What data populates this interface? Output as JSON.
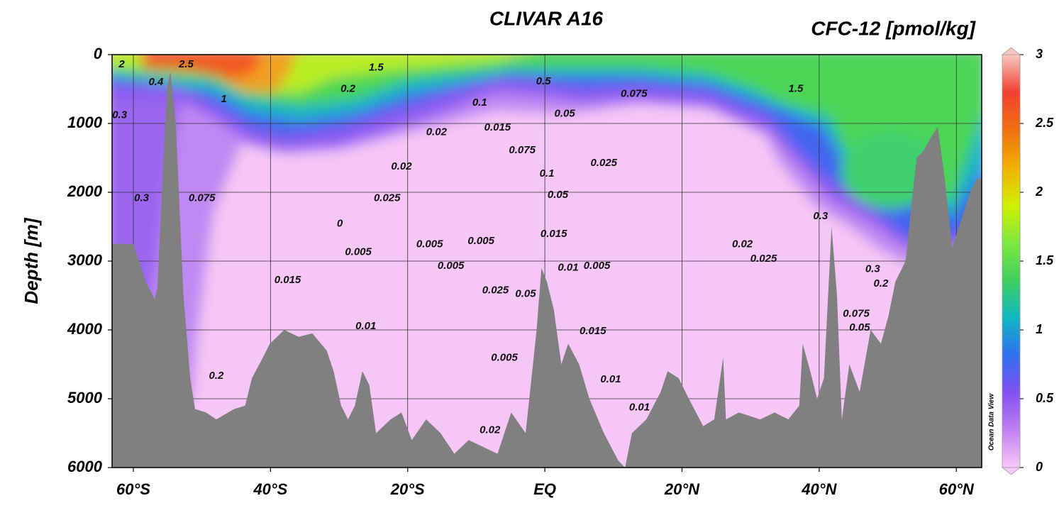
{
  "chart_data": {
    "type": "section",
    "title": "CLIVAR A16",
    "variable": "CFC-12 [pmol/kg]",
    "ylabel": "Depth [m]",
    "watermark": "Ocean Data View",
    "xlim": [
      -63.1,
      63.7
    ],
    "ylim": [
      0,
      6000
    ],
    "xticks": [
      {
        "value": -60,
        "label": "60°S"
      },
      {
        "value": -40,
        "label": "40°S"
      },
      {
        "value": -20,
        "label": "20°S"
      },
      {
        "value": 0,
        "label": "EQ"
      },
      {
        "value": 20,
        "label": "20°N"
      },
      {
        "value": 40,
        "label": "40°N"
      },
      {
        "value": 60,
        "label": "60°N"
      }
    ],
    "yticks": [
      0,
      1000,
      2000,
      3000,
      4000,
      5000,
      6000
    ],
    "grid": true,
    "bathymetry_color": "#808080",
    "colorbar": {
      "lim": [
        0,
        3
      ],
      "ticks": [
        0,
        0.5,
        1,
        1.5,
        2,
        2.5,
        3
      ],
      "colors": [
        "#f8c8f8",
        "#c080f0",
        "#8050f0",
        "#3070f0",
        "#10b8c0",
        "#40d060",
        "#80e840",
        "#d0f000",
        "#f0b000",
        "#f07010",
        "#f04030",
        "#f8c8c0"
      ]
    },
    "bathymetry": {
      "lat": [
        -63.1,
        -60,
        -58.2,
        -56.9,
        -56.5,
        -55.6,
        -55.1,
        -54.6,
        -53.8,
        -52.7,
        -51.7,
        -51,
        -49.4,
        -47.9,
        -45.3,
        -43.7,
        -42.7,
        -41.1,
        -40.1,
        -38,
        -35.9,
        -33.9,
        -31.8,
        -30.8,
        -29.7,
        -28.7,
        -27.7,
        -26.6,
        -25.6,
        -24.6,
        -22.5,
        -20.9,
        -19.4,
        -17.3,
        -15.2,
        -13.2,
        -11.1,
        -9,
        -6.9,
        -4.9,
        -2.8,
        -1.2,
        -0.5,
        0.3,
        1.3,
        2.4,
        3.4,
        5,
        6.5,
        8.6,
        10.7,
        11.7,
        12.7,
        14.8,
        16.9,
        17.9,
        19.5,
        21,
        23.1,
        24.7,
        26,
        26.4,
        28.3,
        31.4,
        33.5,
        35.5,
        37.1,
        37.6,
        38.7,
        39.7,
        40.7,
        41.8,
        42.6,
        43.3,
        44.4,
        45.9,
        47.5,
        49,
        50.1,
        51.1,
        52.6,
        54.2,
        55.2,
        56.3,
        57.3,
        58.3,
        59.4,
        60.4,
        62,
        63,
        63.7
      ],
      "depth": [
        2750,
        2750,
        3300,
        3550,
        3400,
        1500,
        500,
        250,
        1000,
        3500,
        4700,
        5150,
        5200,
        5300,
        5150,
        5100,
        4700,
        4400,
        4200,
        4000,
        4100,
        4050,
        4300,
        4600,
        5100,
        5300,
        5100,
        4600,
        4800,
        5500,
        5300,
        5200,
        5600,
        5300,
        5500,
        5800,
        5600,
        5700,
        5800,
        5200,
        5500,
        4000,
        3100,
        3300,
        3700,
        4500,
        4200,
        4500,
        5000,
        5500,
        5900,
        6000,
        5500,
        5300,
        4900,
        4600,
        4700,
        5000,
        5400,
        5300,
        4400,
        5300,
        5200,
        5300,
        5200,
        5300,
        5100,
        4200,
        4600,
        5000,
        4700,
        2500,
        3500,
        5300,
        4500,
        4900,
        4000,
        4200,
        3800,
        3300,
        3000,
        1500,
        1400,
        1200,
        1050,
        1800,
        2800,
        2500,
        2000,
        1800,
        1800
      ]
    },
    "contour_labels": [
      {
        "lat": -61.7,
        "depth": 145,
        "value": 2
      },
      {
        "lat": -52.3,
        "depth": 145,
        "value": 2.5
      },
      {
        "lat": -24.6,
        "depth": 190,
        "value": 1.5
      },
      {
        "lat": -56.7,
        "depth": 400,
        "value": 0.4
      },
      {
        "lat": -46.8,
        "depth": 650,
        "value": 1
      },
      {
        "lat": -62,
        "depth": 880,
        "value": 0.3
      },
      {
        "lat": -28.7,
        "depth": 500,
        "value": 0.2
      },
      {
        "lat": -0.2,
        "depth": 390,
        "value": 0.5
      },
      {
        "lat": -9.5,
        "depth": 700,
        "value": 0.1
      },
      {
        "lat": 13,
        "depth": 570,
        "value": 0.075
      },
      {
        "lat": 2.9,
        "depth": 860,
        "value": 0.05
      },
      {
        "lat": 36.6,
        "depth": 500,
        "value": 1.5
      },
      {
        "lat": -15.8,
        "depth": 1130,
        "value": 0.02
      },
      {
        "lat": -6.9,
        "depth": 1060,
        "value": 0.015
      },
      {
        "lat": -3.3,
        "depth": 1390,
        "value": 0.075
      },
      {
        "lat": -20.9,
        "depth": 1630,
        "value": 0.02
      },
      {
        "lat": 0.3,
        "depth": 1730,
        "value": 0.1
      },
      {
        "lat": 8.6,
        "depth": 1580,
        "value": 0.025
      },
      {
        "lat": -58.8,
        "depth": 2090,
        "value": 0.3
      },
      {
        "lat": -50,
        "depth": 2090,
        "value": 0.075
      },
      {
        "lat": -23,
        "depth": 2090,
        "value": 0.025
      },
      {
        "lat": 1.9,
        "depth": 2040,
        "value": 0.05
      },
      {
        "lat": -29.9,
        "depth": 2460,
        "value": 0
      },
      {
        "lat": 1.3,
        "depth": 2610,
        "value": 0.015
      },
      {
        "lat": -27.2,
        "depth": 2870,
        "value": 0.005
      },
      {
        "lat": -16.8,
        "depth": 2760,
        "value": 0.005
      },
      {
        "lat": -9.3,
        "depth": 2710,
        "value": 0.005
      },
      {
        "lat": -13.7,
        "depth": 3070,
        "value": 0.005
      },
      {
        "lat": 3.4,
        "depth": 3100,
        "value": 0.01
      },
      {
        "lat": 7.6,
        "depth": 3070,
        "value": 0.005
      },
      {
        "lat": 40.2,
        "depth": 2350,
        "value": 0.3
      },
      {
        "lat": 28.8,
        "depth": 2760,
        "value": 0.02
      },
      {
        "lat": 31.9,
        "depth": 2970,
        "value": 0.025
      },
      {
        "lat": -37.5,
        "depth": 3280,
        "value": 0.015
      },
      {
        "lat": -7.2,
        "depth": 3430,
        "value": 0.025
      },
      {
        "lat": -2.8,
        "depth": 3480,
        "value": 0.05
      },
      {
        "lat": 47.8,
        "depth": 3120,
        "value": 0.3
      },
      {
        "lat": 49,
        "depth": 3330,
        "value": 0.2
      },
      {
        "lat": 45.4,
        "depth": 3770,
        "value": 0.075
      },
      {
        "lat": 45.9,
        "depth": 3970,
        "value": 0.05
      },
      {
        "lat": -26.1,
        "depth": 3950,
        "value": 0.01
      },
      {
        "lat": 7,
        "depth": 4020,
        "value": 0.015
      },
      {
        "lat": -5.9,
        "depth": 4410,
        "value": 0.005
      },
      {
        "lat": -47.9,
        "depth": 4670,
        "value": 0.2
      },
      {
        "lat": 9.6,
        "depth": 4720,
        "value": 0.01
      },
      {
        "lat": 13.8,
        "depth": 5130,
        "value": 0.01
      },
      {
        "lat": -8,
        "depth": 5460,
        "value": 0.02
      }
    ]
  }
}
